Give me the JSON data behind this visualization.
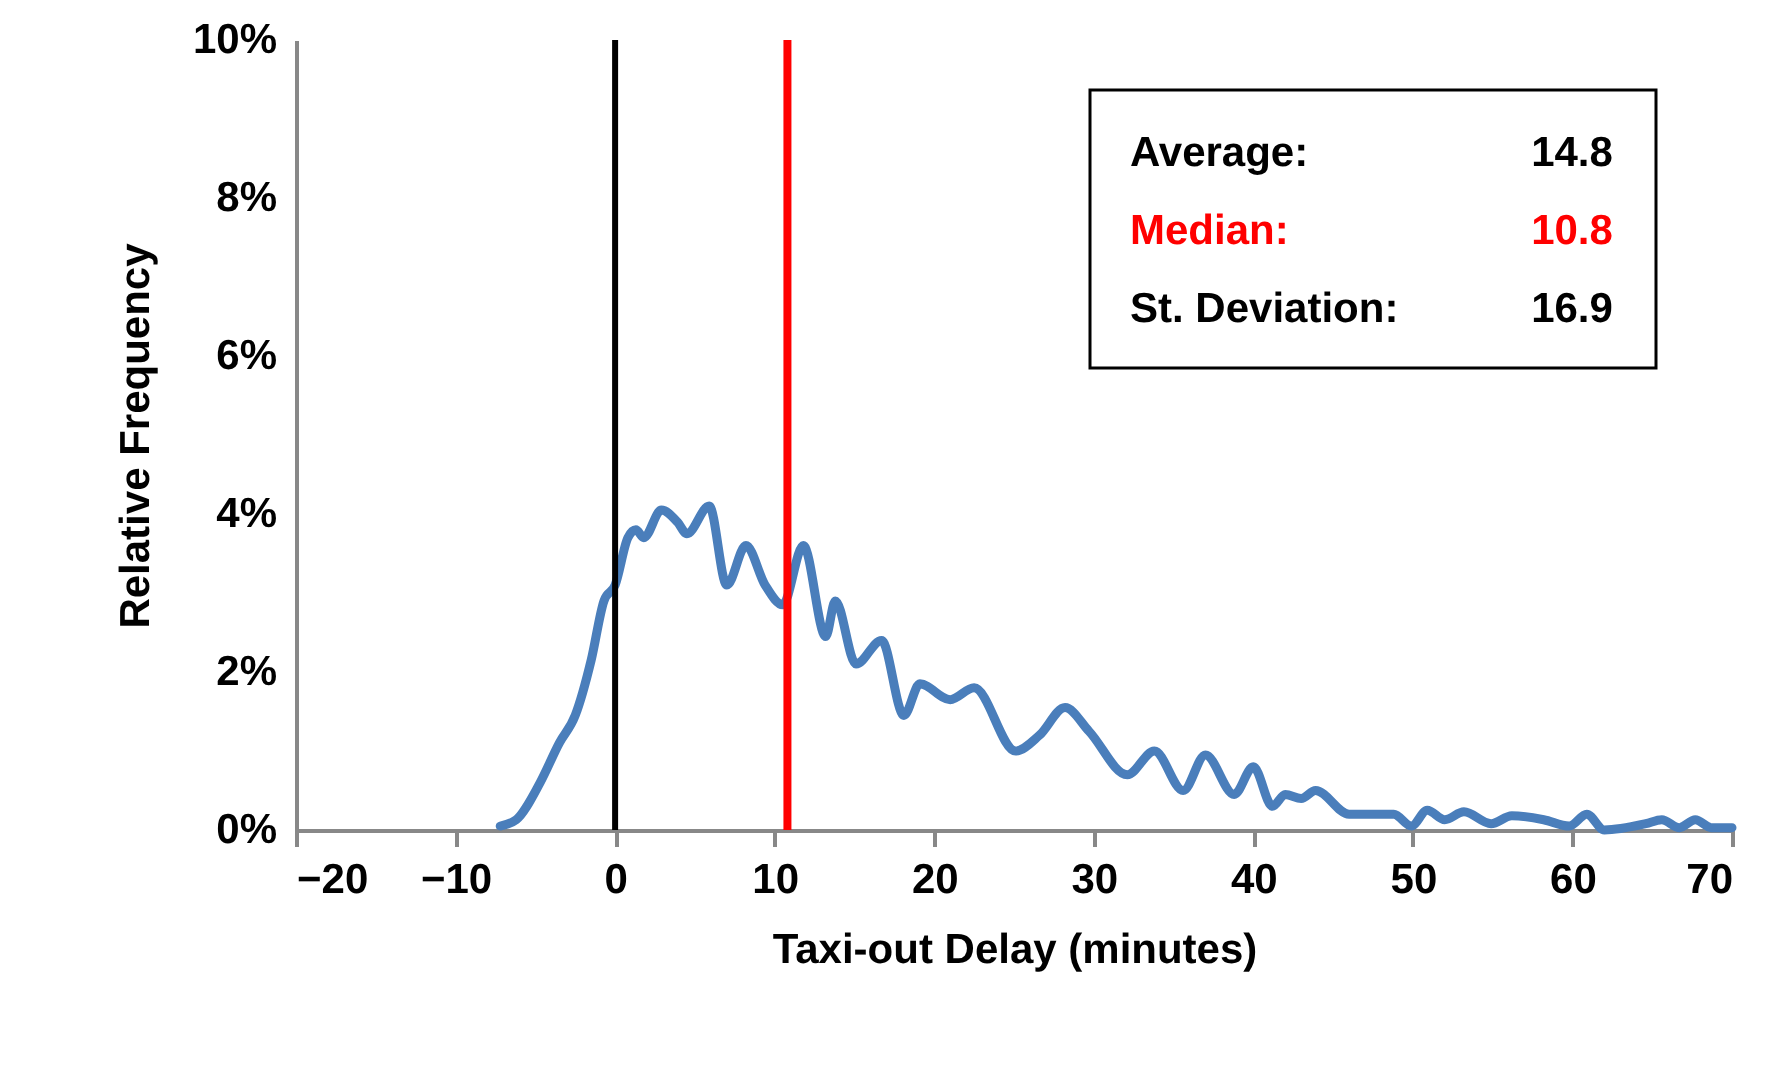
{
  "chart_data": {
    "type": "line",
    "xlabel": "Taxi-out Delay (minutes)",
    "ylabel": "Relative Frequency",
    "x": [
      -7.2,
      -6.2,
      -4.7,
      -3.5,
      -2.5,
      -1.5,
      -0.7,
      0,
      0.8,
      1.3,
      1.8,
      2.9,
      3.9,
      4.5,
      5.9,
      7,
      8.2,
      9.4,
      10.5,
      11.8,
      13.2,
      13.8,
      15.1,
      16.7,
      18.1,
      19.1,
      21,
      22.5,
      25.1,
      26.6,
      28.2,
      29.7,
      32.1,
      33.8,
      35.6,
      37,
      38.8,
      40,
      41.2,
      42,
      43,
      43.9,
      46,
      48.8,
      49.9,
      50.9,
      52,
      53.2,
      54.9,
      56.2,
      58.2,
      59.8,
      60.9,
      62,
      64.6,
      65.6,
      66.7,
      67.7,
      68.7,
      70
    ],
    "series": [
      {
        "color": "#4a7ebb",
        "values": [
          0.05,
          0.13,
          0.6,
          1.1,
          1.45,
          2.15,
          2.9,
          3.1,
          3.7,
          3.8,
          3.7,
          4.05,
          3.9,
          3.75,
          4.1,
          3.1,
          3.6,
          3.1,
          2.85,
          3.6,
          2.45,
          2.9,
          2.1,
          2.4,
          1.45,
          1.85,
          1.65,
          1.8,
          1.0,
          1.2,
          1.55,
          1.25,
          0.7,
          1.0,
          0.5,
          0.95,
          0.45,
          0.8,
          0.3,
          0.45,
          0.4,
          0.5,
          0.2,
          0.2,
          0.05,
          0.25,
          0.13,
          0.23,
          0.08,
          0.18,
          0.13,
          0.05,
          0.2,
          0.0,
          0.08,
          0.13,
          0.03,
          0.13,
          0.03,
          0.03
        ]
      }
    ],
    "xlim": [
      -20,
      70
    ],
    "xticks": [
      -20,
      -10,
      0,
      10,
      20,
      30,
      40,
      50,
      60,
      70
    ],
    "ylim": [
      0,
      10
    ],
    "yticks": [
      {
        "value": 0,
        "label": "0%"
      },
      {
        "value": 2,
        "label": "2%"
      },
      {
        "value": 4,
        "label": "4%"
      },
      {
        "value": 6,
        "label": "6%"
      },
      {
        "value": 8,
        "label": "8%"
      },
      {
        "value": 10,
        "label": "10%"
      }
    ],
    "ref_lines": [
      {
        "axis": "x",
        "value": 0,
        "color": "#000000"
      },
      {
        "axis": "x",
        "value": 10.8,
        "label": "Median:",
        "color": "#ff0000"
      }
    ],
    "annotations": [
      "Average:",
      "14.8",
      "10.8",
      "St. Deviation:",
      "16.9"
    ],
    "grid": false,
    "marker": "none",
    "line_style": "solid"
  }
}
